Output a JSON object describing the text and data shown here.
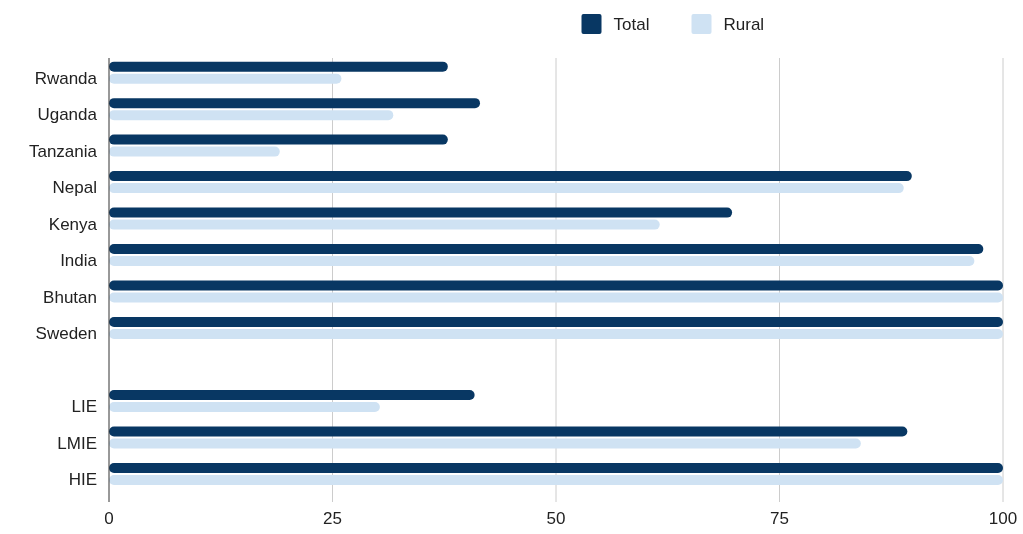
{
  "chart_data": {
    "type": "bar",
    "orientation": "horizontal",
    "categories": [
      "Rwanda",
      "Uganda",
      "Tanzania",
      "Nepal",
      "Kenya",
      "India",
      "Bhutan",
      "Sweden",
      null,
      "LIE",
      "LMIE",
      "HIE"
    ],
    "series": [
      {
        "name": "Total",
        "color": "#083763",
        "values": [
          37.9,
          41.5,
          37.9,
          89.8,
          69.7,
          97.8,
          100,
          100,
          null,
          40.9,
          89.3,
          100
        ]
      },
      {
        "name": "Rural",
        "color": "#cfe2f3",
        "values": [
          26,
          31.8,
          19.1,
          88.9,
          61.6,
          96.8,
          100,
          100,
          null,
          30.3,
          84.1,
          100
        ]
      }
    ],
    "xlim": [
      0,
      100
    ],
    "xticks": [
      0,
      25,
      50,
      75,
      100
    ],
    "grid": "x",
    "legend": "top"
  }
}
